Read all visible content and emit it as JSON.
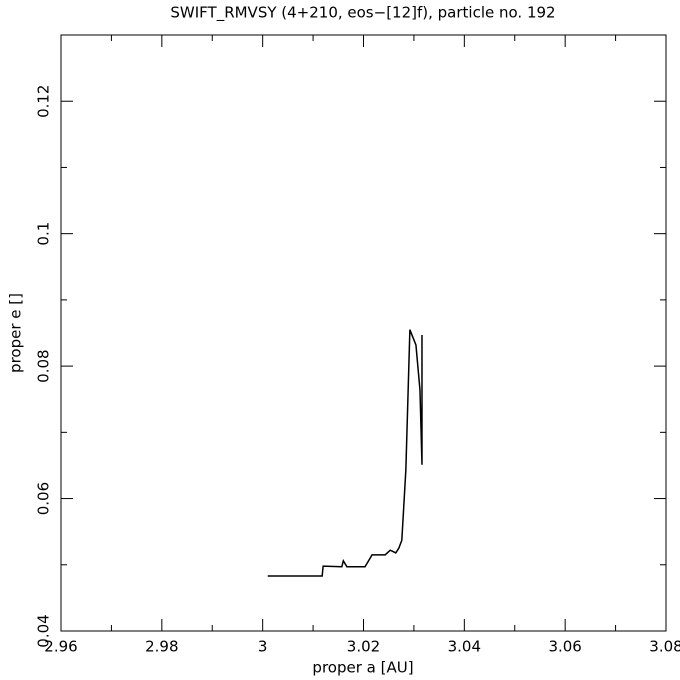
{
  "chart_data": {
    "type": "line",
    "title": "SWIFT_RMVSY (4+210, eos−[12]f), particle no. 192",
    "x_label": "proper a [AU]",
    "y_label": "proper e []",
    "x": [
      3.001,
      3.0118,
      3.012,
      3.0157,
      3.016,
      3.0167,
      3.0203,
      3.0217,
      3.0243,
      3.0253,
      3.0264,
      3.027,
      3.0276,
      3.0284,
      3.0292,
      3.0304,
      3.0312,
      3.0316,
      3.0316
    ],
    "series": [
      {
        "color": "#000000",
        "values": [
          0.0483,
          0.0483,
          0.0498,
          0.0497,
          0.0506,
          0.0497,
          0.0497,
          0.0515,
          0.0515,
          0.0522,
          0.0518,
          0.0525,
          0.0537,
          0.0643,
          0.0855,
          0.0832,
          0.0764,
          0.0651,
          0.0847
        ]
      }
    ],
    "xlim": [
      2.96,
      3.08
    ],
    "xticks": [
      2.96,
      2.98,
      3,
      3.02,
      3.04,
      3.06,
      3.08
    ],
    "xminorticks": [
      2.97,
      2.99,
      3.01,
      3.03,
      3.05,
      3.07
    ],
    "ylim": [
      0.04,
      0.13
    ],
    "yticks": [
      0.04,
      0.06,
      0.08,
      0.1,
      0.12
    ],
    "yminorticks": [
      0.05,
      0.07,
      0.09,
      0.11,
      0.13
    ],
    "grid": false
  }
}
